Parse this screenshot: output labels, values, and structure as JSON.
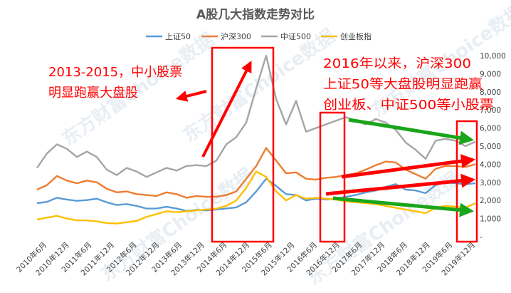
{
  "chart_data": {
    "type": "line",
    "title": "A股几大指数走势对比",
    "x_ticks": [
      "2010年6月",
      "2010年12月",
      "2011年6月",
      "2011年12月",
      "2012年6月",
      "2012年12月",
      "2013年6月",
      "2013年12月",
      "2014年6月",
      "2014年12月",
      "2015年6月",
      "2015年12月",
      "2016年6月",
      "2016年12月",
      "2017年6月",
      "2017年12月",
      "2018年6月",
      "2018年12月",
      "2019年6月",
      "2019年12月"
    ],
    "y_ticks": [
      "-",
      "1,000",
      "2,000",
      "3,000",
      "4,000",
      "5,000",
      "6,000",
      "7,000",
      "8,000",
      "9,000",
      "10,000"
    ],
    "ylim": [
      0,
      10000
    ],
    "grid": false,
    "legend_position": "top",
    "series": [
      {
        "name": "上证50",
        "color": "#5b9bd5",
        "values": [
          1850,
          1920,
          2150,
          2050,
          1980,
          2020,
          2100,
          1900,
          1750,
          1800,
          1700,
          1550,
          1560,
          1650,
          1560,
          1420,
          1480,
          1450,
          1500,
          1560,
          1620,
          1900,
          2500,
          3200,
          2800,
          2350,
          2300,
          2000,
          2100,
          2050,
          2100,
          2200,
          2300,
          2450,
          2550,
          2750,
          2900,
          2600,
          2550,
          2400,
          2850,
          3000,
          2950,
          2900,
          2950
        ]
      },
      {
        "name": "沪深300",
        "color": "#ed7d31",
        "values": [
          2600,
          2850,
          3350,
          3100,
          2950,
          3100,
          3000,
          2650,
          2450,
          2500,
          2350,
          2300,
          2250,
          2450,
          2350,
          2150,
          2250,
          2200,
          2200,
          2300,
          2500,
          3200,
          3900,
          4900,
          4200,
          3500,
          3550,
          3200,
          3150,
          3250,
          3300,
          3400,
          3500,
          3700,
          3950,
          4150,
          4100,
          3700,
          3450,
          3200,
          3750,
          3900,
          3900,
          3850,
          4000
        ]
      },
      {
        "name": "中证500",
        "color": "#a5a5a5",
        "values": [
          3800,
          4600,
          5100,
          4850,
          4400,
          4700,
          4400,
          3700,
          3400,
          3800,
          3600,
          3300,
          3550,
          3800,
          3650,
          3900,
          3950,
          3900,
          4200,
          5100,
          5500,
          6300,
          8200,
          10000,
          7600,
          6200,
          7500,
          5800,
          6000,
          6200,
          6400,
          6600,
          6400,
          6200,
          6500,
          6300,
          5900,
          5200,
          4800,
          4300,
          5300,
          5400,
          5300,
          5000,
          5250
        ]
      },
      {
        "name": "创业板指",
        "color": "#ffc000",
        "values": [
          950,
          1050,
          1150,
          1000,
          900,
          900,
          850,
          750,
          730,
          800,
          870,
          1100,
          1250,
          1400,
          1350,
          1400,
          1450,
          1500,
          1550,
          1700,
          2000,
          2700,
          3600,
          3300,
          2500,
          2000,
          2300,
          2100,
          2150,
          2100,
          2050,
          1950,
          1900,
          1850,
          1800,
          1700,
          1600,
          1500,
          1400,
          1300,
          1600,
          1700,
          1650,
          1600,
          1850
        ]
      }
    ],
    "annotations": [
      "2013-2015，中小股票",
      "明显跑赢大盘股",
      "2016年以来，沪深300",
      "上证50等大盘股明显跑赢",
      "创业板、中证500等小股票"
    ],
    "watermark": "东方财富Choice数据"
  }
}
